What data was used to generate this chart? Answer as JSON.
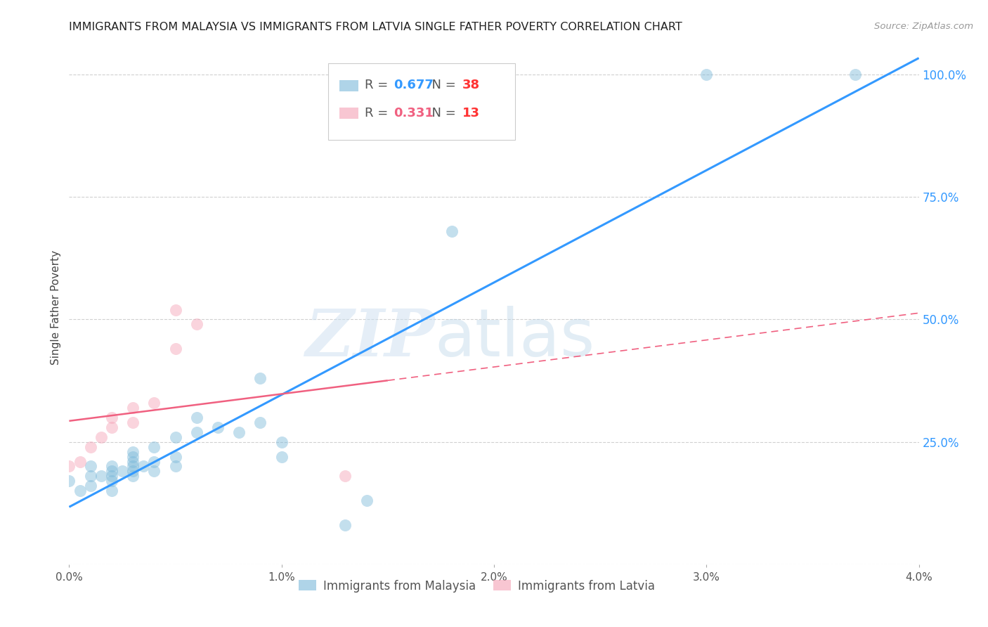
{
  "title": "IMMIGRANTS FROM MALAYSIA VS IMMIGRANTS FROM LATVIA SINGLE FATHER POVERTY CORRELATION CHART",
  "source": "Source: ZipAtlas.com",
  "ylabel": "Single Father Poverty",
  "right_yticks": [
    0.0,
    0.25,
    0.5,
    0.75,
    1.0
  ],
  "right_yticklabels": [
    "",
    "25.0%",
    "50.0%",
    "75.0%",
    "100.0%"
  ],
  "xlim": [
    0.0,
    0.04
  ],
  "ylim": [
    0.0,
    1.05
  ],
  "xticklabels": [
    "0.0%",
    "1.0%",
    "2.0%",
    "3.0%",
    "4.0%"
  ],
  "xticks": [
    0.0,
    0.01,
    0.02,
    0.03,
    0.04
  ],
  "malaysia_color": "#7ab8d9",
  "latvia_color": "#f4a0b5",
  "malaysia_R": 0.677,
  "malaysia_N": 38,
  "latvia_R": 0.331,
  "latvia_N": 13,
  "malaysia_x": [
    0.0,
    0.0005,
    0.001,
    0.001,
    0.001,
    0.0015,
    0.002,
    0.002,
    0.002,
    0.002,
    0.002,
    0.0025,
    0.003,
    0.003,
    0.003,
    0.003,
    0.003,
    0.003,
    0.0035,
    0.004,
    0.004,
    0.004,
    0.005,
    0.005,
    0.005,
    0.006,
    0.006,
    0.007,
    0.008,
    0.009,
    0.009,
    0.01,
    0.01,
    0.013,
    0.014,
    0.018,
    0.03,
    0.037
  ],
  "malaysia_y": [
    0.17,
    0.15,
    0.16,
    0.18,
    0.2,
    0.18,
    0.15,
    0.17,
    0.18,
    0.19,
    0.2,
    0.19,
    0.18,
    0.19,
    0.2,
    0.21,
    0.22,
    0.23,
    0.2,
    0.19,
    0.21,
    0.24,
    0.2,
    0.22,
    0.26,
    0.27,
    0.3,
    0.28,
    0.27,
    0.38,
    0.29,
    0.22,
    0.25,
    0.08,
    0.13,
    0.68,
    1.0,
    1.0
  ],
  "latvia_x": [
    0.0,
    0.0005,
    0.001,
    0.0015,
    0.002,
    0.002,
    0.003,
    0.003,
    0.004,
    0.005,
    0.005,
    0.006,
    0.013
  ],
  "latvia_y": [
    0.2,
    0.21,
    0.24,
    0.26,
    0.28,
    0.3,
    0.29,
    0.32,
    0.33,
    0.44,
    0.52,
    0.49,
    0.18
  ],
  "watermark_zip": "ZIP",
  "watermark_atlas": "atlas",
  "background_color": "#ffffff",
  "grid_color": "#d0d0d0",
  "blue_line_color": "#3399ff",
  "pink_line_color": "#f06080",
  "legend_R_blue": "#3399ff",
  "legend_N_blue": "#ff4444",
  "legend_R_pink": "#f06080",
  "legend_N_pink": "#ff4444"
}
